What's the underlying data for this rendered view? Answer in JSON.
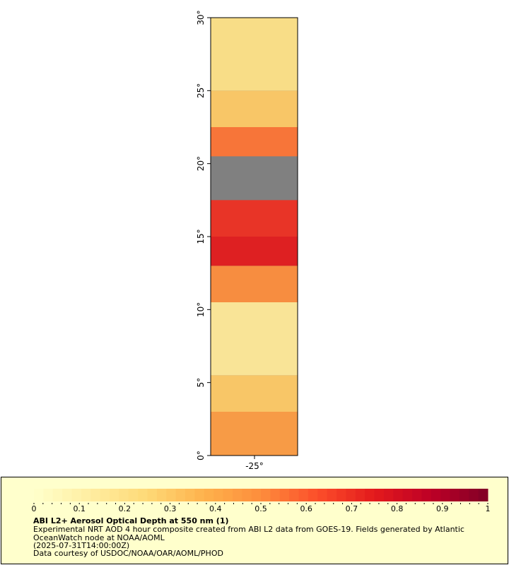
{
  "map": {
    "lat_axis": {
      "min": 0,
      "max": 30,
      "ticks": [
        0,
        5,
        10,
        15,
        20,
        25,
        30
      ],
      "tick_labels": [
        "0°",
        "5°",
        "10°",
        "15°",
        "20°",
        "25°",
        "30°"
      ]
    },
    "lon_axis": {
      "ticks": [
        -25
      ],
      "tick_labels": [
        "-25°"
      ]
    },
    "colors": {
      "no_data": "#808080",
      "low": "#ffffcc",
      "mid": "#fd8d3c",
      "high": "#800026"
    },
    "bands": [
      {
        "lat_from": 0,
        "lat_to": 3,
        "aod": 0.45
      },
      {
        "lat_from": 3,
        "lat_to": 5.5,
        "aod": 0.3
      },
      {
        "lat_from": 5.5,
        "lat_to": 10.5,
        "aod": 0.15
      },
      {
        "lat_from": 10.5,
        "lat_to": 13,
        "aod": 0.5
      },
      {
        "lat_from": 13,
        "lat_to": 15,
        "aod": 0.75
      },
      {
        "lat_from": 15,
        "lat_to": 17.5,
        "aod": 0.7
      },
      {
        "lat_from": 20.5,
        "lat_to": 22.5,
        "aod": 0.55
      },
      {
        "lat_from": 22.5,
        "lat_to": 25,
        "aod": 0.3
      },
      {
        "lat_from": 25,
        "lat_to": 30,
        "aod": 0.2
      }
    ]
  },
  "legend": {
    "ticks": [
      0,
      0.1,
      0.2,
      0.3,
      0.4,
      0.5,
      0.6,
      0.7,
      0.8,
      0.9,
      1
    ],
    "tick_labels": [
      "0",
      "0.1",
      "0.2",
      "0.3",
      "0.4",
      "0.5",
      "0.6",
      "0.7",
      "0.8",
      "0.9",
      "1"
    ],
    "colors": [
      "#ffffcc",
      "#ffeda0",
      "#fed976",
      "#feb24c",
      "#fd8d3c",
      "#fc4e2a",
      "#e31a1c",
      "#bd0026",
      "#800026"
    ],
    "title": "ABI L2+ Aerosol Optical Depth at 550 nm (1)",
    "line1": "Experimental NRT AOD 4 hour composite created from ABI L2 data from GOES-19. Fields generated by Atlantic",
    "line2": "OceanWatch node at NOAA/AOML",
    "line3": "(2025-07-31T14:00:00Z)",
    "line4": "Data courtesy of USDOC/NOAA/OAR/AOML/PHOD"
  }
}
